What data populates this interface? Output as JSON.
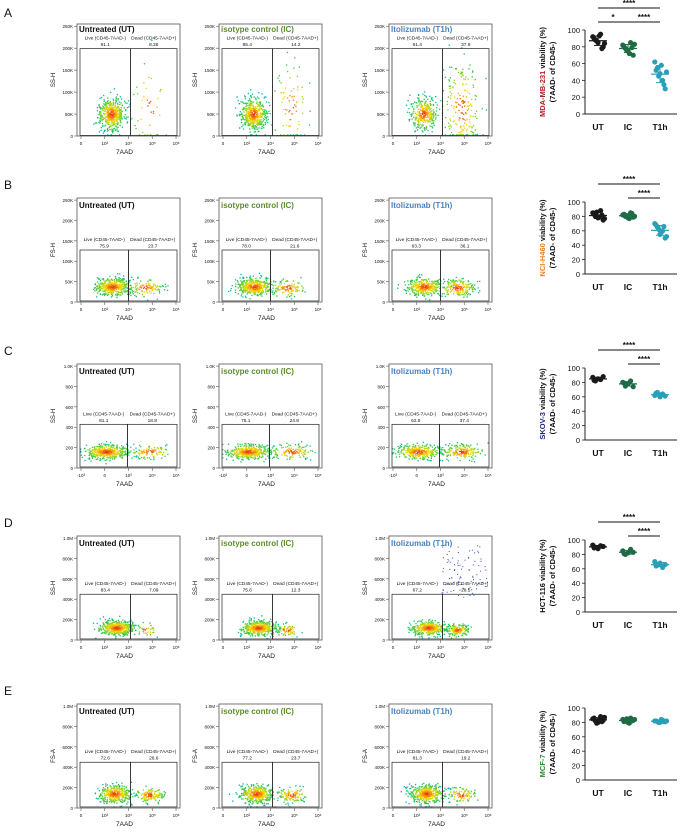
{
  "figure": {
    "condition_titles": [
      "Untreated (UT)",
      "isotype control (IC)",
      "Itolizumab (T1h)"
    ],
    "flow_xlabel": "7AAD",
    "gate_labels": {
      "live": "Live (CD45-7AAD-)",
      "dead": "Dead (CD45-7AAD+)"
    },
    "group_labels": [
      "UT",
      "IC",
      "T1h"
    ],
    "colors": {
      "ut_title": "#111111",
      "ic_title": "#5b8f2a",
      "t1h_title": "#4a82c0",
      "ut_dots": "#1a1a1a",
      "ic_dots": "#1e6b45",
      "t1h_dots": "#2aa0b8"
    }
  },
  "panels": [
    {
      "letter": "A",
      "flow_ylabel": "SS-H",
      "y_ticks": [
        "0",
        "50K",
        "100K",
        "150K",
        "200K",
        "250K"
      ],
      "x_ticks": [
        "0",
        "10³",
        "10⁴",
        "10⁵",
        "10⁶"
      ],
      "gates": [
        {
          "live": "91.1",
          "dead": "8.26"
        },
        {
          "live": "85.4",
          "dead": "14.2"
        },
        {
          "live": "61.4",
          "dead": "37.9"
        }
      ]
    },
    {
      "letter": "B",
      "flow_ylabel": "FS-H",
      "y_ticks": [
        "0",
        "50K",
        "100K",
        "150K",
        "200K",
        "250K"
      ],
      "x_ticks": [
        "0",
        "10³",
        "10⁴",
        "10⁵",
        "10⁶"
      ],
      "gates": [
        {
          "live": "75.9",
          "dead": "23.7"
        },
        {
          "live": "78.0",
          "dead": "21.6"
        },
        {
          "live": "63.3",
          "dead": "36.1"
        }
      ]
    },
    {
      "letter": "C",
      "flow_ylabel": "SS-H",
      "y_ticks": [
        "0",
        "200",
        "400",
        "600",
        "800",
        "1.0K"
      ],
      "x_ticks": [
        "-10³",
        "0",
        "10³",
        "10⁴",
        "10⁵"
      ],
      "gates": [
        {
          "live": "81.1",
          "dead": "18.8"
        },
        {
          "live": "75.1",
          "dead": "24.8"
        },
        {
          "live": "62.5",
          "dead": "37.4"
        }
      ]
    },
    {
      "letter": "D",
      "flow_ylabel": "SS-H",
      "y_ticks": [
        "0",
        "200K",
        "400K",
        "600K",
        "800K",
        "1.0M"
      ],
      "x_ticks": [
        "0",
        "10³",
        "10⁴",
        "10⁵",
        "10⁶"
      ],
      "gates": [
        {
          "live": "83.4",
          "dead": "7.09"
        },
        {
          "live": "75.6",
          "dead": "12.3"
        },
        {
          "live": "67.2",
          "dead": "28.5"
        }
      ]
    },
    {
      "letter": "E",
      "flow_ylabel": "FS-A",
      "y_ticks": [
        "0",
        "200K",
        "400K",
        "600K",
        "800K",
        "1.0M"
      ],
      "x_ticks": [
        "0",
        "10³",
        "10⁴",
        "10⁵",
        "10⁶"
      ],
      "gates": [
        {
          "live": "72.6",
          "dead": "26.6"
        },
        {
          "live": "77.2",
          "dead": "23.7"
        },
        {
          "live": "81.3",
          "dead": "19.2"
        }
      ]
    }
  ],
  "chart_data": [
    {
      "type": "scatter",
      "panel": "A",
      "ylabel_cell": "MDA-MB-231",
      "ylabel_cell_color": "#b22222",
      "ylabel_rest": " viability (%)",
      "ylabel_line2": "(7AAD- of CD45-)",
      "ylim": [
        0,
        100
      ],
      "yticks": [
        "0",
        "20",
        "40",
        "60",
        "80",
        "100"
      ],
      "categories": [
        "UT",
        "IC",
        "T1h"
      ],
      "series": [
        {
          "name": "UT",
          "values": [
            92,
            88,
            85,
            95,
            80,
            90,
            87,
            93,
            78,
            84
          ]
        },
        {
          "name": "IC",
          "values": [
            82,
            78,
            75,
            85,
            70,
            80,
            76,
            72,
            79,
            83
          ]
        },
        {
          "name": "T1h",
          "values": [
            62,
            55,
            48,
            40,
            30,
            52,
            45,
            58,
            35,
            50
          ]
        }
      ],
      "significance": [
        {
          "from": 0,
          "to": 2,
          "label": "****"
        },
        {
          "from": 0,
          "to": 1,
          "label": "*"
        },
        {
          "from": 1,
          "to": 2,
          "label": "****"
        }
      ]
    },
    {
      "type": "scatter",
      "panel": "B",
      "ylabel_cell": "NCI-H460",
      "ylabel_cell_color": "#e8821e",
      "ylabel_rest": " viability (%)",
      "ylabel_line2": "(7AAD- of CD45-)",
      "ylim": [
        0,
        100
      ],
      "yticks": [
        "0",
        "20",
        "40",
        "60",
        "80",
        "100"
      ],
      "categories": [
        "UT",
        "IC",
        "T1h"
      ],
      "series": [
        {
          "name": "UT",
          "values": [
            85,
            80,
            78,
            88,
            75,
            83,
            86,
            79,
            82,
            77
          ]
        },
        {
          "name": "IC",
          "values": [
            82,
            80,
            78,
            85,
            79,
            83,
            81,
            77,
            84,
            80
          ]
        },
        {
          "name": "T1h",
          "values": [
            70,
            65,
            55,
            60,
            50,
            68,
            62,
            58,
            66,
            52
          ]
        }
      ],
      "significance": [
        {
          "from": 0,
          "to": 2,
          "label": "****"
        },
        {
          "from": 1,
          "to": 2,
          "label": "****"
        }
      ]
    },
    {
      "type": "scatter",
      "panel": "C",
      "ylabel_cell": "SKOV-3",
      "ylabel_cell_color": "#1f2a7a",
      "ylabel_rest": " viability (%)",
      "ylabel_line2": "(7AAD- of CD45-)",
      "ylim": [
        0,
        100
      ],
      "yticks": [
        "0",
        "20",
        "40",
        "60",
        "80",
        "100"
      ],
      "categories": [
        "UT",
        "IC",
        "T1h"
      ],
      "series": [
        {
          "name": "UT",
          "values": [
            87,
            82,
            85,
            84,
            88,
            83
          ]
        },
        {
          "name": "IC",
          "values": [
            80,
            75,
            78,
            82,
            74,
            79
          ]
        },
        {
          "name": "T1h",
          "values": [
            62,
            66,
            60,
            64,
            61,
            65
          ]
        }
      ],
      "significance": [
        {
          "from": 0,
          "to": 2,
          "label": "****"
        },
        {
          "from": 1,
          "to": 2,
          "label": "****"
        }
      ]
    },
    {
      "type": "scatter",
      "panel": "D",
      "ylabel_cell": "HCT-116",
      "ylabel_cell_color": "#111111",
      "ylabel_rest": " viability (%)",
      "ylabel_line2": "(7AAD- of CD45-)",
      "ylim": [
        0,
        100
      ],
      "yticks": [
        "0",
        "20",
        "40",
        "60",
        "80",
        "100"
      ],
      "categories": [
        "UT",
        "IC",
        "T1h"
      ],
      "series": [
        {
          "name": "UT",
          "values": [
            93,
            90,
            88,
            92,
            91,
            89
          ]
        },
        {
          "name": "IC",
          "values": [
            85,
            80,
            82,
            87,
            83,
            81
          ]
        },
        {
          "name": "T1h",
          "values": [
            70,
            65,
            68,
            62,
            66,
            64
          ]
        }
      ],
      "significance": [
        {
          "from": 0,
          "to": 2,
          "label": "****"
        },
        {
          "from": 1,
          "to": 2,
          "label": "****"
        }
      ]
    },
    {
      "type": "scatter",
      "panel": "E",
      "ylabel_cell": "MCF-7",
      "ylabel_cell_color": "#2e8b2e",
      "ylabel_rest": " viability (%)",
      "ylabel_line2": "(7AAD- of CD45-)",
      "ylim": [
        0,
        100
      ],
      "yticks": [
        "0",
        "20",
        "40",
        "60",
        "80",
        "100"
      ],
      "categories": [
        "UT",
        "IC",
        "T1h"
      ],
      "series": [
        {
          "name": "UT",
          "values": [
            85,
            82,
            80,
            88,
            83,
            86,
            79,
            84,
            81,
            87
          ]
        },
        {
          "name": "IC",
          "values": [
            84,
            82,
            80,
            86,
            83,
            81,
            85,
            79,
            82,
            84
          ]
        },
        {
          "name": "T1h",
          "values": [
            82,
            81,
            80,
            83,
            81,
            82,
            80,
            84,
            81,
            82
          ]
        }
      ],
      "significance": []
    }
  ]
}
